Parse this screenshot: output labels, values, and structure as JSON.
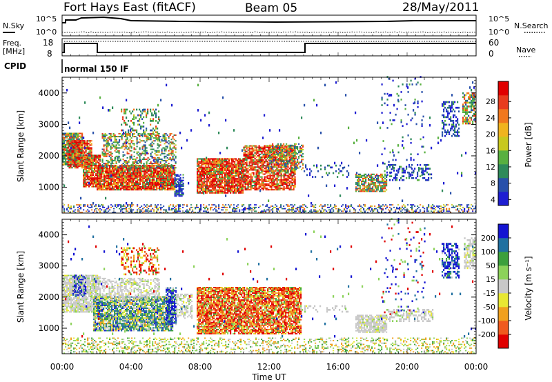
{
  "header": {
    "station": "Fort Hays East (fitACF)",
    "beam": "Beam 05",
    "date": "28/May/2011"
  },
  "colors": {
    "power_scale": [
      "#1e1ed2",
      "#2850aa",
      "#2e8a5a",
      "#58b040",
      "#c8c81e",
      "#f0b41e",
      "#f0781e",
      "#e83c1e",
      "#e00000"
    ],
    "velocity_scale": [
      "#1414d2",
      "#2070a0",
      "#3ca03c",
      "#8cd25a",
      "#c8c8c8",
      "#e8e832",
      "#f0a01e",
      "#f05a1e",
      "#e00000"
    ],
    "ground_scatter": "#c8c8c8"
  },
  "strip": {
    "nsky_label": "N.Sky",
    "nsearch_label": "N.Search",
    "left_ticks": [
      "10^5",
      "10^0"
    ],
    "right_ticks": [
      "10^5",
      "10^0"
    ],
    "freq_label_1": "Freq.",
    "freq_label_2": "[MHz]",
    "nave_label": "Nave",
    "freq_ticks": [
      "18",
      "8"
    ],
    "nave_ticks": [
      "60",
      "0"
    ],
    "cpid_label": "CPID",
    "cpid_value": "normal 150 IF"
  },
  "chart_data": [
    {
      "type": "heatmap",
      "name": "power",
      "ylabel": "Slant Range [km]",
      "colorbar_label": "Power [dB]",
      "colorbar_ticks": [
        "28",
        "24",
        "20",
        "16",
        "12",
        "8",
        "4"
      ],
      "x_ticks": [
        "00:00",
        "04:00",
        "08:00",
        "12:00",
        "16:00",
        "20:00",
        "00:00"
      ],
      "y_ticks": [
        "4000",
        "3000",
        "2000",
        "1000"
      ],
      "xlim_hours": [
        0,
        24
      ],
      "ylim_km": [
        180,
        4500
      ]
    },
    {
      "type": "heatmap",
      "name": "velocity",
      "xlabel": "Time UT",
      "ylabel": "Slant Range [km]",
      "colorbar_label": "Velocity [m s⁻¹]",
      "colorbar_ticks": [
        "200",
        "100",
        "50",
        "15",
        "-15",
        "-50",
        "-100",
        "-200"
      ],
      "x_ticks": [
        "00:00",
        "04:00",
        "08:00",
        "12:00",
        "16:00",
        "20:00",
        "00:00"
      ],
      "y_ticks": [
        "4000",
        "3000",
        "2000",
        "1000"
      ],
      "xlim_hours": [
        0,
        24
      ],
      "ylim_km": [
        180,
        4500
      ]
    }
  ]
}
